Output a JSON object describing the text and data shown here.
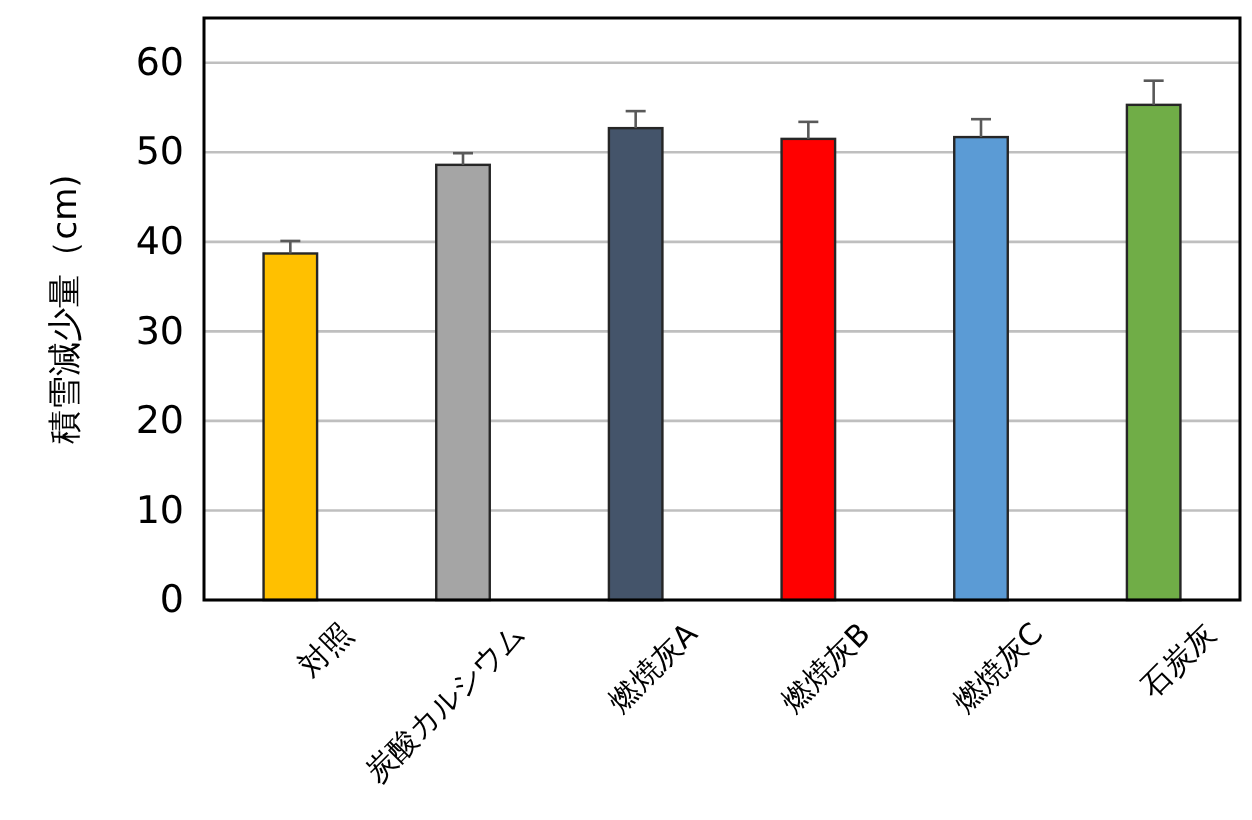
{
  "chart_data": {
    "type": "bar",
    "ylabel": "積雪減少量（cm)",
    "categories": [
      "対照",
      "炭酸カルシウム",
      "燃焼灰A",
      "燃焼灰B",
      "燃焼灰C",
      "石炭灰"
    ],
    "values": [
      38.7,
      48.6,
      52.7,
      51.5,
      51.7,
      55.3
    ],
    "colors": [
      "#ffc000",
      "#a5a5a5",
      "#44546a",
      "#ff0000",
      "#5b9bd5",
      "#70ad47"
    ],
    "errors": [
      [
        38.7,
        40.1
      ],
      [
        48.6,
        49.9
      ],
      [
        52.7,
        54.6
      ],
      [
        51.5,
        53.4
      ],
      [
        51.7,
        53.7
      ],
      [
        55.3,
        58.0
      ]
    ],
    "ylim": [
      0,
      65
    ],
    "yticks": [
      0,
      10,
      20,
      30,
      40,
      50,
      60
    ],
    "grid": "y"
  }
}
